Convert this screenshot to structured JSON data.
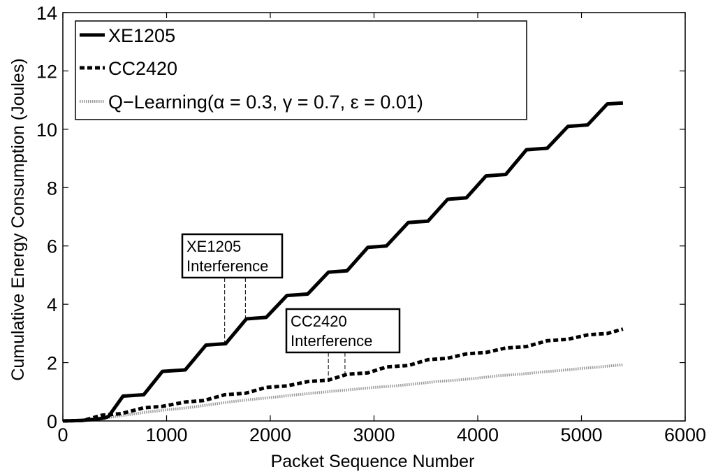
{
  "chart_data": {
    "type": "line",
    "title": "",
    "xlabel": "Packet Sequence Number",
    "ylabel": "Cumulative Energy Consumption (Joules)",
    "xlim": [
      0,
      6000
    ],
    "ylim": [
      0,
      14
    ],
    "xticks": [
      0,
      1000,
      2000,
      3000,
      4000,
      5000,
      6000
    ],
    "yticks": [
      0,
      2,
      4,
      6,
      8,
      10,
      12,
      14
    ],
    "grid": false,
    "legend_position": "top-left",
    "series": [
      {
        "name": "XE1205",
        "style": "solid",
        "color": "#000000",
        "x": [
          0,
          180,
          300,
          400,
          440,
          580,
          780,
          960,
          1180,
          1380,
          1570,
          1770,
          1960,
          2160,
          2360,
          2560,
          2740,
          2940,
          3120,
          3330,
          3520,
          3710,
          3890,
          4080,
          4270,
          4470,
          4670,
          4870,
          5060,
          5250,
          5400
        ],
        "y": [
          0,
          0.02,
          0.05,
          0.1,
          0.15,
          0.85,
          0.9,
          1.7,
          1.75,
          2.6,
          2.65,
          3.5,
          3.55,
          4.3,
          4.35,
          5.1,
          5.15,
          5.95,
          6.0,
          6.8,
          6.85,
          7.6,
          7.65,
          8.4,
          8.45,
          9.3,
          9.35,
          10.1,
          10.15,
          10.87,
          10.9
        ]
      },
      {
        "name": "CC2420",
        "style": "dashed",
        "color": "#000000",
        "x": [
          0,
          200,
          380,
          560,
          780,
          960,
          1180,
          1360,
          1560,
          1760,
          1960,
          2160,
          2360,
          2560,
          2740,
          2940,
          3120,
          3330,
          3520,
          3710,
          3890,
          4080,
          4270,
          4470,
          4670,
          4870,
          5060,
          5250,
          5400
        ],
        "y": [
          0,
          0.02,
          0.2,
          0.25,
          0.45,
          0.5,
          0.65,
          0.7,
          0.9,
          0.95,
          1.15,
          1.2,
          1.35,
          1.4,
          1.6,
          1.65,
          1.85,
          1.9,
          2.1,
          2.15,
          2.3,
          2.35,
          2.5,
          2.55,
          2.75,
          2.8,
          2.95,
          3.0,
          3.15
        ]
      },
      {
        "name": "Q−Learning(α = 0.3, γ = 0.7, ε = 0.01)",
        "style": "dotted",
        "color": "#9a9a9a",
        "x": [
          0,
          200,
          400,
          600,
          800,
          1000,
          1200,
          1400,
          1600,
          1800,
          2000,
          2200,
          2400,
          2600,
          2800,
          3000,
          3200,
          3400,
          3600,
          3800,
          4000,
          4200,
          4400,
          4600,
          4800,
          5000,
          5200,
          5400
        ],
        "y": [
          0,
          0.02,
          0.1,
          0.2,
          0.3,
          0.38,
          0.45,
          0.55,
          0.65,
          0.73,
          0.8,
          0.88,
          0.95,
          1.02,
          1.08,
          1.15,
          1.2,
          1.27,
          1.35,
          1.4,
          1.47,
          1.55,
          1.6,
          1.67,
          1.73,
          1.8,
          1.86,
          1.93
        ]
      }
    ],
    "annotations": [
      {
        "line1": "XE1205",
        "line2": "Interference",
        "pointer_x": [
          1560,
          1760
        ],
        "pointer_y": [
          2.65,
          3.5
        ]
      },
      {
        "line1": "CC2420",
        "line2": "Interference",
        "pointer_x": [
          2560,
          2720
        ],
        "pointer_y": [
          1.4,
          1.6
        ]
      }
    ]
  }
}
